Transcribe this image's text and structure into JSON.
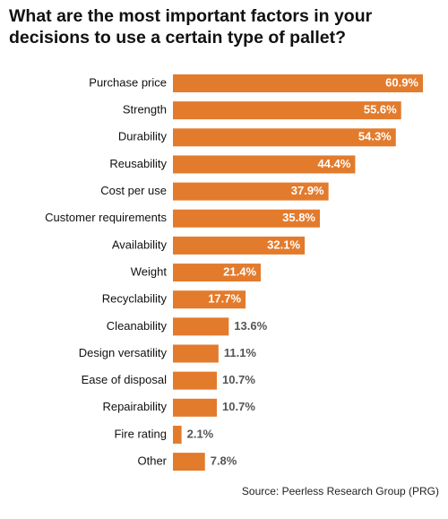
{
  "chart_data": {
    "type": "hbar",
    "title": "What are the most important factors in your decisions to use a certain type of pallet?",
    "source": "Source: Peerless Research Group (PRG)",
    "color": "#e37b2c",
    "categories": [
      "Purchase price",
      "Strength",
      "Durability",
      "Reusability",
      "Cost per use",
      "Customer requirements",
      "Availability",
      "Weight",
      "Recyclability",
      "Cleanability",
      "Design versatility",
      "Ease of disposal",
      "Repairability",
      "Fire rating",
      "Other"
    ],
    "values": [
      60.9,
      55.6,
      54.3,
      44.4,
      37.9,
      35.8,
      32.1,
      21.4,
      17.7,
      13.6,
      11.1,
      10.7,
      10.7,
      2.1,
      7.8
    ],
    "value_labels": [
      "60.9%",
      "55.6%",
      "54.3%",
      "44.4%",
      "37.9%",
      "35.8%",
      "32.1%",
      "21.4%",
      "17.7%",
      "13.6%",
      "11.1%",
      "10.7%",
      "10.7%",
      "2.1%",
      "7.8%"
    ]
  }
}
